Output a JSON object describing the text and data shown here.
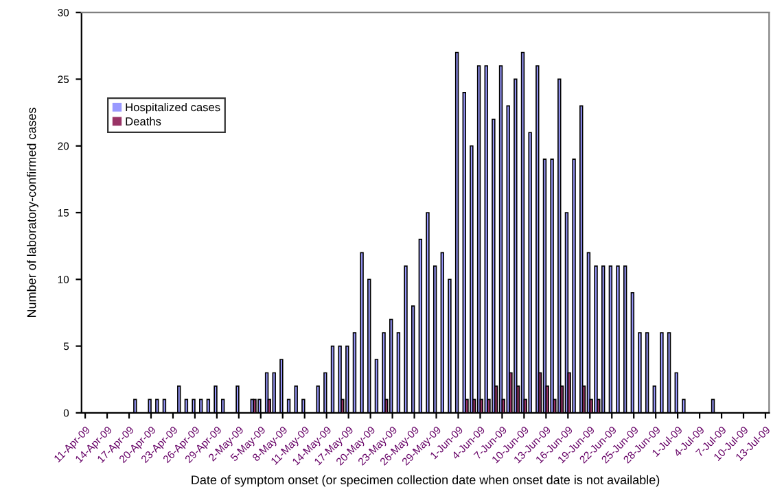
{
  "chart_data": {
    "type": "bar",
    "xlabel": "Date of symptom onset (or specimen collection date when onset date is not available)",
    "ylabel": "Number of laboratory-confirmed cases",
    "categories": [
      "11-Apr-09",
      null,
      null,
      "14-Apr-09",
      null,
      null,
      "17-Apr-09",
      null,
      null,
      "20-Apr-09",
      null,
      null,
      "23-Apr-09",
      null,
      null,
      "26-Apr-09",
      null,
      null,
      "29-Apr-09",
      null,
      null,
      "2-May-09",
      null,
      null,
      "5-May-09",
      null,
      null,
      "8-May-09",
      null,
      null,
      "11-May-09",
      null,
      null,
      "14-May-09",
      null,
      null,
      "17-May-09",
      null,
      null,
      "20-May-09",
      null,
      null,
      "23-May-09",
      null,
      null,
      "26-May-09",
      null,
      null,
      "29-May-09",
      null,
      null,
      "1-Jun-09",
      null,
      null,
      "4-Jun-09",
      null,
      null,
      "7-Jun-09",
      null,
      null,
      "10-Jun-09",
      null,
      null,
      "13-Jun-09",
      null,
      null,
      "16-Jun-09",
      null,
      null,
      "19-Jun-09",
      null,
      null,
      "22-Jun-09",
      null,
      null,
      "25-Jun-09",
      null,
      null,
      "28-Jun-09",
      null,
      null,
      "1-Jul-09",
      null,
      null,
      "4-Jul-09",
      null,
      null,
      "7-Jul-09",
      null,
      null,
      "10-Jul-09",
      null,
      null,
      "13-Jul-09"
    ],
    "series": [
      {
        "name": "Hospitalized cases",
        "color": "#9999ff",
        "values": [
          0,
          0,
          0,
          0,
          0,
          0,
          0,
          1,
          0,
          1,
          1,
          1,
          0,
          2,
          1,
          1,
          1,
          1,
          2,
          1,
          0,
          2,
          0,
          1,
          1,
          3,
          3,
          4,
          1,
          2,
          1,
          0,
          2,
          3,
          5,
          5,
          5,
          6,
          12,
          10,
          4,
          6,
          7,
          6,
          11,
          8,
          13,
          15,
          11,
          12,
          10,
          27,
          24,
          20,
          26,
          26,
          22,
          26,
          23,
          25,
          27,
          21,
          26,
          19,
          19,
          25,
          15,
          19,
          23,
          12,
          11,
          11,
          11,
          11,
          11,
          9,
          6,
          6,
          2,
          6,
          6,
          3,
          1,
          0,
          0,
          0,
          1,
          0,
          0,
          0,
          0,
          0,
          0,
          0
        ]
      },
      {
        "name": "Deaths",
        "color": "#993366",
        "values": [
          0,
          0,
          0,
          0,
          0,
          0,
          0,
          0,
          0,
          0,
          0,
          0,
          0,
          0,
          0,
          0,
          0,
          0,
          0,
          0,
          0,
          0,
          0,
          1,
          0,
          1,
          0,
          0,
          0,
          0,
          0,
          0,
          0,
          0,
          0,
          1,
          0,
          0,
          0,
          0,
          0,
          1,
          0,
          0,
          0,
          0,
          0,
          0,
          0,
          0,
          0,
          0,
          1,
          1,
          1,
          1,
          2,
          1,
          3,
          2,
          1,
          0,
          3,
          2,
          1,
          2,
          3,
          0,
          2,
          1,
          1,
          0,
          0,
          0,
          0,
          0,
          0,
          0,
          0,
          0,
          0,
          0,
          0,
          0,
          0,
          0,
          0,
          0,
          0,
          0,
          0,
          0,
          0,
          0
        ]
      }
    ],
    "ylim": [
      0,
      30
    ],
    "yticks": [
      0,
      5,
      10,
      15,
      20,
      25,
      30
    ],
    "legend": "top left"
  }
}
